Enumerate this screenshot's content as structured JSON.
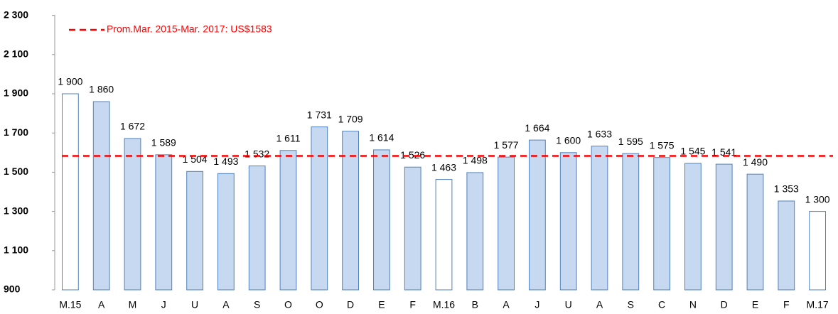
{
  "chart_data": {
    "type": "bar",
    "categories": [
      "M.15",
      "A",
      "M",
      "J",
      "U",
      "A",
      "S",
      "O",
      "O",
      "D",
      "E",
      "F",
      "M.16",
      "B",
      "A",
      "J",
      "U",
      "A",
      "S",
      "C",
      "N",
      "D",
      "E",
      "F",
      "M.17"
    ],
    "values": [
      1900,
      1860,
      1672,
      1589,
      1504,
      1493,
      1532,
      1611,
      1731,
      1709,
      1614,
      1526,
      1463,
      1498,
      1577,
      1664,
      1600,
      1633,
      1595,
      1575,
      1545,
      1541,
      1490,
      1353,
      1300
    ],
    "value_labels": [
      "1 900",
      "1 860",
      "1 672",
      "1 589",
      "1 504",
      "1 493",
      "1 532",
      "1 611",
      "1 731",
      "1 709",
      "1 614",
      "1 526",
      "1 463",
      "1 498",
      "1 577",
      "1 664",
      "1 600",
      "1 633",
      "1 595",
      "1 575",
      "1 545",
      "1 541",
      "1 490",
      "1 353",
      "1 300"
    ],
    "colors": [
      "#ffffff",
      "#c6d9f1",
      "#c6d9f1",
      "#c6d9f1",
      "#c6d9f1",
      "#c6d9f1",
      "#c6d9f1",
      "#c6d9f1",
      "#c6d9f1",
      "#c6d9f1",
      "#c6d9f1",
      "#c6d9f1",
      "#ffffff",
      "#c6d9f1",
      "#c6d9f1",
      "#c6d9f1",
      "#c6d9f1",
      "#c6d9f1",
      "#c6d9f1",
      "#c6d9f1",
      "#c6d9f1",
      "#c6d9f1",
      "#c6d9f1",
      "#c6d9f1",
      "#ffffff"
    ],
    "edge_color": "#4f81bd",
    "ylim": [
      900,
      2300
    ],
    "yticks": [
      {
        "value": 900,
        "label": "900"
      },
      {
        "value": 1100,
        "label": "1 100"
      },
      {
        "value": 1300,
        "label": "1 300"
      },
      {
        "value": 1500,
        "label": "1 500"
      },
      {
        "value": 1700,
        "label": "1 700"
      },
      {
        "value": 1900,
        "label": "1 900"
      },
      {
        "value": 2100,
        "label": "2 100"
      },
      {
        "value": 2300,
        "label": "2 300"
      }
    ],
    "reference_line": {
      "value": 1583,
      "label": "Prom.Mar. 2015-Mar. 2017: US$1583",
      "color": "#ff0000"
    },
    "grid": false
  }
}
